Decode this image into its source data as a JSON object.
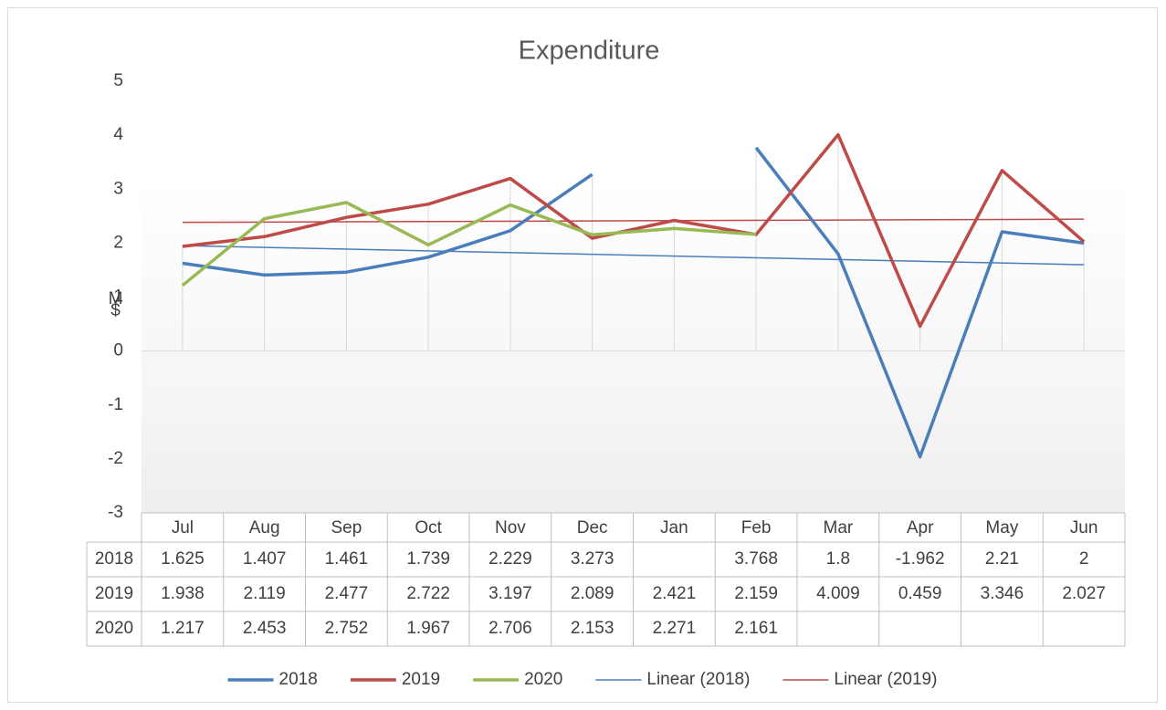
{
  "chart_data": {
    "type": "line",
    "title": "Expenditure",
    "ylabel": "M$",
    "categories": [
      "Jul",
      "Aug",
      "Sep",
      "Oct",
      "Nov",
      "Dec",
      "Jan",
      "Feb",
      "Mar",
      "Apr",
      "May",
      "Jun"
    ],
    "series": [
      {
        "name": "2018",
        "color": "#4a7ebb",
        "values": [
          1.625,
          1.407,
          1.461,
          1.739,
          2.229,
          3.273,
          null,
          3.768,
          1.8,
          -1.962,
          2.21,
          2
        ]
      },
      {
        "name": "2019",
        "color": "#be4b48",
        "values": [
          1.938,
          2.119,
          2.477,
          2.722,
          3.197,
          2.089,
          2.421,
          2.159,
          4.009,
          0.459,
          3.346,
          2.027
        ]
      },
      {
        "name": "2020",
        "color": "#98b954",
        "values": [
          1.217,
          2.453,
          2.752,
          1.967,
          2.706,
          2.153,
          2.271,
          2.161,
          null,
          null,
          null,
          null
        ]
      }
    ],
    "trendlines": [
      {
        "name": "Linear (2018)",
        "series": 0,
        "kind": "linear",
        "color": "#4a7ebb"
      },
      {
        "name": "Linear (2019)",
        "series": 1,
        "kind": "linear",
        "color": "#be4b48"
      }
    ],
    "ylim": [
      -3,
      5
    ],
    "yticks": [
      -3,
      -2,
      -1,
      0,
      1,
      2,
      3,
      4,
      5
    ],
    "droplines": true,
    "data_table": true,
    "legend": "bottom"
  }
}
